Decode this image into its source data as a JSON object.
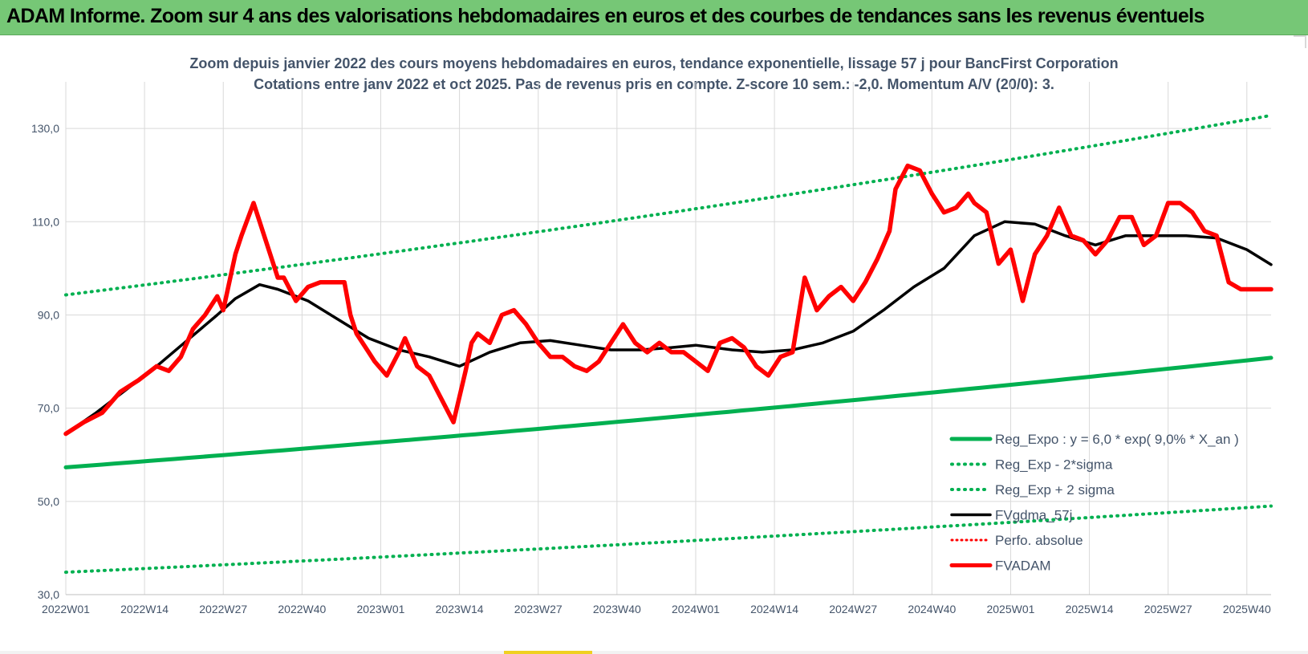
{
  "banner": {
    "title": "ADAM Informe. Zoom sur 4 ans des valorisations hebdomadaires en euros et des courbes de tendances sans les revenus éventuels"
  },
  "colors": {
    "banner_bg": "#76c776",
    "regression": "#00b050",
    "fvgdma": "#000000",
    "fvadam": "#ff0000",
    "perfo": "#ff0000",
    "grid": "#d9d9d9",
    "text": "#44546a"
  },
  "chart_data": {
    "type": "line",
    "title": "Zoom depuis janvier 2022 des cours moyens hebdomadaires en euros, tendance exponentielle, lissage 57 j pour BancFirst Corporation",
    "subtitle": "Cotations entre janv 2022 et oct 2025. Pas de revenus pris en compte. Z-score 10 sem.: -2,0. Momentum A/V (20/0): 3.",
    "xlabel": "",
    "ylabel": "",
    "ylim": [
      30,
      140
    ],
    "yticks": [
      "30,0",
      "50,0",
      "70,0",
      "90,0",
      "110,0",
      "130,0"
    ],
    "ytick_values": [
      30,
      50,
      70,
      90,
      110,
      130
    ],
    "xticks": [
      "2022W01",
      "2022W14",
      "2022W27",
      "2022W40",
      "2023W01",
      "2023W14",
      "2023W27",
      "2023W40",
      "2024W01",
      "2024W14",
      "2024W27",
      "2024W40",
      "2025W01",
      "2025W14",
      "2025W27",
      "2025W40"
    ],
    "xtick_positions": [
      0,
      13,
      26,
      39,
      52,
      65,
      78,
      91,
      104,
      117,
      130,
      143,
      156,
      169,
      182,
      195
    ],
    "x_range": [
      0,
      199
    ],
    "legend_position": "bottom-right",
    "series": [
      {
        "name": "Reg_Expo : y = 6,0 * exp( 9,0% *  X_an )",
        "style": "solid-thick",
        "x": [
          0,
          199
        ],
        "y": [
          57.3,
          80.8
        ],
        "interpolation": "exponential"
      },
      {
        "name": "Reg_Exp - 2*sigma",
        "style": "dotted",
        "x": [
          0,
          199
        ],
        "y": [
          34.8,
          49.0
        ],
        "interpolation": "exponential"
      },
      {
        "name": "Reg_Exp + 2 sigma",
        "style": "dotted",
        "x": [
          0,
          199
        ],
        "y": [
          94.3,
          132.8
        ],
        "interpolation": "exponential"
      },
      {
        "name": "FVgdma_57j",
        "style": "solid",
        "x": [
          0,
          5,
          10,
          15,
          20,
          25,
          28,
          32,
          35,
          40,
          45,
          50,
          55,
          60,
          65,
          70,
          75,
          80,
          85,
          90,
          95,
          100,
          104,
          110,
          115,
          120,
          125,
          130,
          135,
          140,
          145,
          150,
          155,
          160,
          165,
          170,
          175,
          180,
          185,
          190,
          195,
          199
        ],
        "y": [
          64.5,
          69,
          74,
          79,
          84.5,
          90,
          93.5,
          96.5,
          95.5,
          93,
          89,
          85,
          82.5,
          81,
          79,
          82,
          84,
          84.5,
          83.5,
          82.5,
          82.5,
          83,
          83.5,
          82.5,
          82,
          82.5,
          84,
          86.5,
          91,
          96,
          100,
          107,
          110,
          109.5,
          107,
          105,
          107,
          107,
          107,
          106.5,
          104,
          100.8
        ]
      },
      {
        "name": "Perfo. absolue",
        "style": "dotted",
        "x": [],
        "y": []
      },
      {
        "name": "FVADAM",
        "style": "solid-thick",
        "x": [
          0,
          3,
          6,
          9,
          12,
          15,
          17,
          19,
          21,
          23,
          25,
          26,
          28,
          29,
          31,
          33,
          35,
          36,
          38,
          40,
          42,
          44,
          46,
          47,
          48,
          50,
          51,
          53,
          55,
          56,
          58,
          60,
          62,
          64,
          66,
          67,
          68,
          70,
          72,
          74,
          76,
          78,
          80,
          82,
          84,
          86,
          88,
          90,
          92,
          94,
          96,
          98,
          100,
          102,
          104,
          106,
          108,
          110,
          112,
          114,
          116,
          118,
          120,
          122,
          124,
          126,
          128,
          130,
          132,
          134,
          136,
          137,
          139,
          141,
          143,
          145,
          147,
          149,
          150,
          152,
          154,
          156,
          158,
          160,
          162,
          164,
          166,
          168,
          170,
          172,
          174,
          176,
          178,
          180,
          182,
          184,
          186,
          188,
          190,
          192,
          194,
          196,
          198,
          199
        ],
        "y": [
          64.5,
          67,
          69,
          73.5,
          76,
          79,
          78,
          81,
          87,
          90,
          94,
          91,
          103,
          107,
          114,
          106,
          98,
          98,
          93,
          96,
          97,
          97,
          97,
          90,
          86,
          82,
          80,
          77,
          82,
          85,
          79,
          77,
          72,
          67,
          78,
          84,
          86,
          84,
          90,
          91,
          88,
          84,
          81,
          81,
          79,
          78,
          80,
          84,
          88,
          84,
          82,
          84,
          82,
          82,
          80,
          78,
          84,
          85,
          83,
          79,
          77,
          81,
          82,
          98,
          91,
          94,
          96,
          93,
          97,
          102,
          108,
          117,
          122,
          121,
          116,
          112,
          113,
          116,
          114,
          112,
          101,
          104,
          93,
          103,
          107,
          113,
          107,
          106,
          103,
          106,
          111,
          111,
          105,
          107,
          114,
          114,
          112,
          108,
          107,
          97,
          95.5,
          95.5,
          95.5,
          95.5
        ]
      }
    ]
  }
}
